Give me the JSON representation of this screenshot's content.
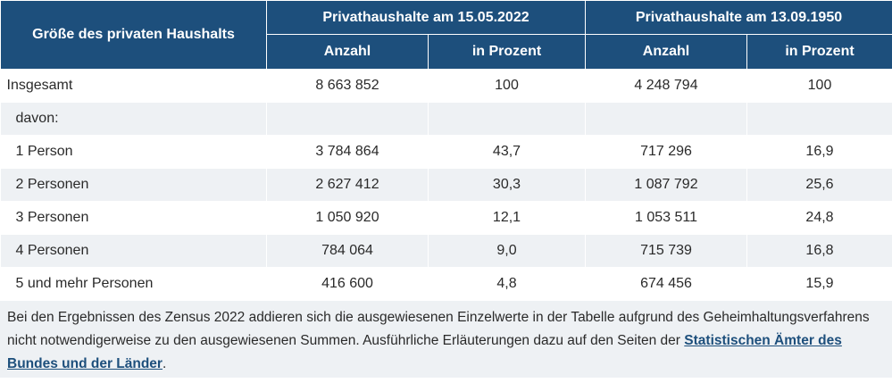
{
  "table": {
    "row_header": "Größe des privaten Haushalts",
    "groups": [
      "Privathaushalte am 15.05.2022",
      "Privathaushalte am 13.09.1950"
    ],
    "subheaders": [
      "Anzahl",
      "in Prozent",
      "Anzahl",
      "in Prozent"
    ],
    "rows": [
      {
        "label": "Insgesamt",
        "values": [
          "8 663 852",
          "100",
          "4 248 794",
          "100"
        ]
      },
      {
        "label": "davon:",
        "values": [
          "",
          "",
          "",
          ""
        ]
      },
      {
        "label": "1 Person",
        "values": [
          "3 784 864",
          "43,7",
          "717 296",
          "16,9"
        ]
      },
      {
        "label": "2 Personen",
        "values": [
          "2 627 412",
          "30,3",
          "1 087 792",
          "25,6"
        ]
      },
      {
        "label": "3 Personen",
        "values": [
          "1 050 920",
          "12,1",
          "1 053 511",
          "24,8"
        ]
      },
      {
        "label": "4 Personen",
        "values": [
          "784 064",
          "9,0",
          "715 739",
          "16,8"
        ]
      },
      {
        "label": "5 und mehr Personen",
        "values": [
          "416 600",
          "4,8",
          "674 456",
          "15,9"
        ]
      }
    ]
  },
  "footnote": {
    "text_before": "Bei den Ergebnissen des Zensus 2022 addieren sich die ausgewiesenen Einzelwerte in der Tabelle aufgrund des Geheimhaltungsverfahrens nicht notwendigerweise zu den ausgewiesenen Summen. Ausführliche Erläuterungen dazu auf den Seiten der ",
    "link_text": "Statistischen Ämter des Bundes und der Länder",
    "text_after": "."
  },
  "colors": {
    "header_bg": "#1d4f7c",
    "stripe_bg": "#eef1f4",
    "link": "#1d4f7c"
  }
}
